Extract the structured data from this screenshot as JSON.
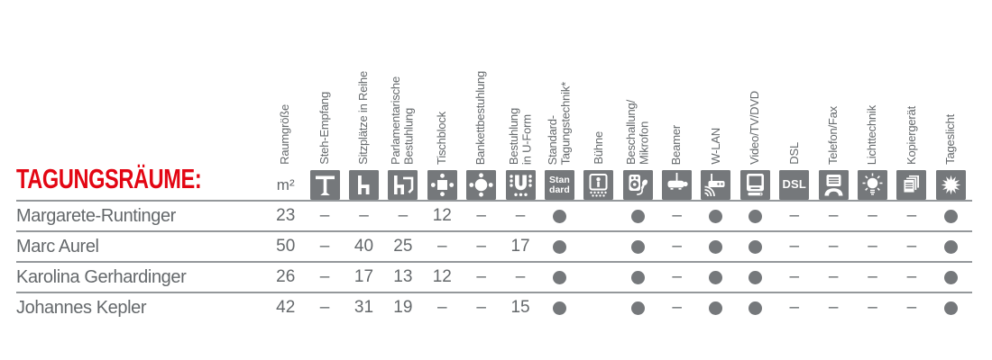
{
  "title": "TAGUNGSRÄUME:",
  "unit_label": "m²",
  "legend": {
    "available": "●",
    "not_available": "–"
  },
  "colors": {
    "accent_red": "#e30613",
    "icon_gray": "#75787b",
    "text_gray": "#64686b",
    "line_gray": "#94989b"
  },
  "columns": [
    {
      "id": "raumgroesse",
      "label": "Raumgröße",
      "icon": "m2-unit-label"
    },
    {
      "id": "steh_empfang",
      "label": "Steh-Empfang",
      "icon": "standing-table-icon"
    },
    {
      "id": "sitzplaetze",
      "label": "Sitzplätze in Reihe",
      "icon": "chair-row-icon"
    },
    {
      "id": "parlamentarisch",
      "label": "Parlamentarische\nBestuhlung",
      "icon": "chair-with-desk-icon"
    },
    {
      "id": "tischblock",
      "label": "Tischblock",
      "icon": "table-block-icon"
    },
    {
      "id": "bankett",
      "label": "Bankettbestuhlung",
      "icon": "round-table-icon"
    },
    {
      "id": "u_form",
      "label": "Bestuhlung\nin U-Form",
      "icon": "u-shape-seating-icon"
    },
    {
      "id": "standard_technik",
      "label": "Standard-\nTagungstechnik*",
      "icon": "standard-badge-icon",
      "icon_text": "Stan\ndard"
    },
    {
      "id": "buehne",
      "label": "Bühne",
      "icon": "stage-icon"
    },
    {
      "id": "beschallung",
      "label": "Beschallung/\nMikrofon",
      "icon": "speaker-microphone-icon"
    },
    {
      "id": "beamer",
      "label": "Beamer",
      "icon": "projector-icon"
    },
    {
      "id": "wlan",
      "label": "W-LAN",
      "icon": "wifi-router-icon"
    },
    {
      "id": "video",
      "label": "Video/TV/DVD",
      "icon": "tv-monitor-icon"
    },
    {
      "id": "dsl",
      "label": "DSL",
      "icon": "dsl-badge-icon",
      "icon_text": "DSL"
    },
    {
      "id": "telefon_fax",
      "label": "Telefon/Fax",
      "icon": "fax-phone-icon"
    },
    {
      "id": "lichttechnik",
      "label": "Lichttechnik",
      "icon": "light-bulb-icon"
    },
    {
      "id": "kopiergeraet",
      "label": "Kopiergerät",
      "icon": "copier-icon"
    },
    {
      "id": "tageslicht",
      "label": "Tageslicht",
      "icon": "sun-icon"
    }
  ],
  "rows": [
    {
      "name": "Margarete-Runtinger",
      "values": [
        "23",
        "–",
        "–",
        "–",
        "12",
        "–",
        "–",
        "●",
        "",
        "●",
        "–",
        "●",
        "●",
        "–",
        "–",
        "–",
        "–",
        "●"
      ]
    },
    {
      "name": "Marc Aurel",
      "values": [
        "50",
        "–",
        "40",
        "25",
        "–",
        "–",
        "17",
        "●",
        "",
        "●",
        "–",
        "●",
        "●",
        "–",
        "–",
        "–",
        "–",
        "●"
      ]
    },
    {
      "name": "Karolina Gerhardinger",
      "values": [
        "26",
        "–",
        "17",
        "13",
        "12",
        "–",
        "–",
        "●",
        "",
        "●",
        "–",
        "●",
        "●",
        "–",
        "–",
        "–",
        "–",
        "●"
      ]
    },
    {
      "name": "Johannes Kepler",
      "values": [
        "42",
        "–",
        "31",
        "19",
        "–",
        "–",
        "15",
        "●",
        "",
        "●",
        "–",
        "●",
        "●",
        "–",
        "–",
        "–",
        "–",
        "●"
      ]
    }
  ]
}
